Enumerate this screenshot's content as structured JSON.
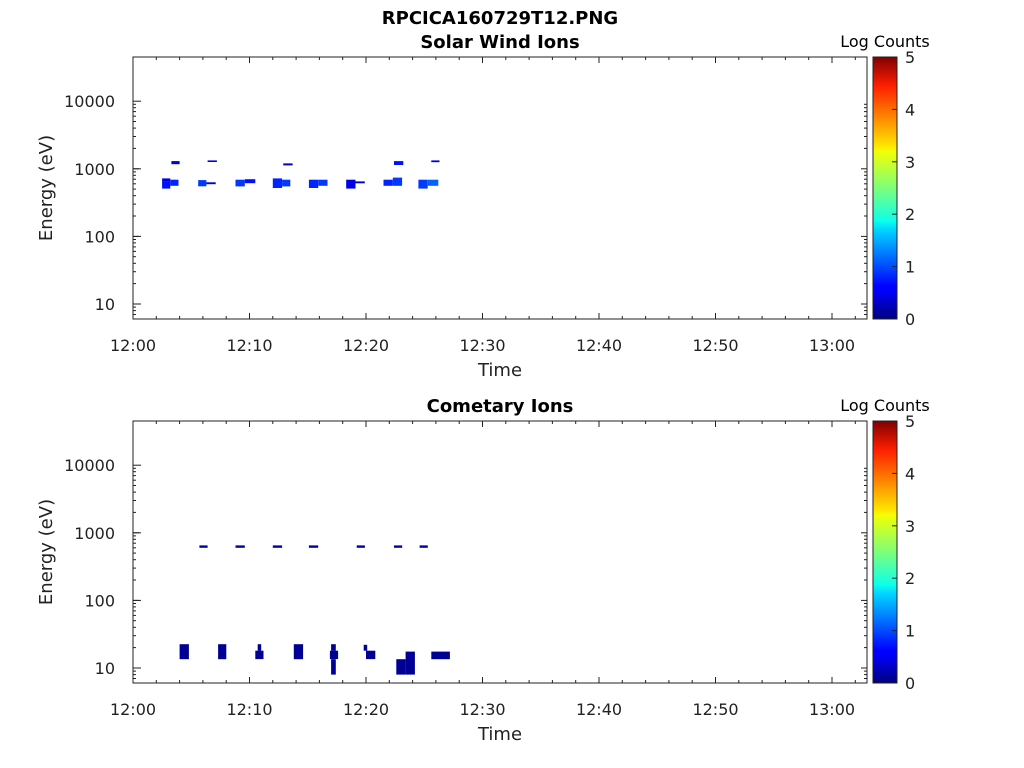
{
  "figure_title": "RPCICA160729T12.PNG",
  "chart_data": [
    {
      "type": "heatmap",
      "title": "Solar Wind Ions",
      "xlabel": "Time",
      "ylabel": "Energy (eV)",
      "x_axis": {
        "ticks": [
          "12:00",
          "12:10",
          "12:20",
          "12:30",
          "12:40",
          "12:50",
          "13:00"
        ],
        "range_min": [
          0,
          63
        ]
      },
      "y_axis": {
        "scale": "log",
        "ticks": [
          "10",
          "100",
          "1000",
          "10000"
        ],
        "range": [
          6,
          45000
        ]
      },
      "colorbar": {
        "label": "Log Counts",
        "ticks": [
          "0",
          "1",
          "2",
          "3",
          "4",
          "5"
        ],
        "range": [
          0,
          5
        ],
        "colormap": "jet"
      },
      "cells": [
        {
          "t0": 2.5,
          "t1": 3.2,
          "e0": 640,
          "e1": 720,
          "v": 0.5
        },
        {
          "t0": 2.5,
          "t1": 3.2,
          "e0": 510,
          "e1": 640,
          "v": 0.7
        },
        {
          "t0": 3.2,
          "t1": 3.9,
          "e0": 560,
          "e1": 690,
          "v": 0.8
        },
        {
          "t0": 3.3,
          "t1": 4.0,
          "e0": 1170,
          "e1": 1300,
          "v": 0.4
        },
        {
          "t0": 5.6,
          "t1": 6.3,
          "e0": 550,
          "e1": 680,
          "v": 0.9
        },
        {
          "t0": 6.3,
          "t1": 7.1,
          "e0": 590,
          "e1": 630,
          "v": 0.4
        },
        {
          "t0": 6.4,
          "t1": 7.2,
          "e0": 1260,
          "e1": 1330,
          "v": 0.5
        },
        {
          "t0": 8.8,
          "t1": 9.6,
          "e0": 550,
          "e1": 690,
          "v": 0.9
        },
        {
          "t0": 9.6,
          "t1": 10.5,
          "e0": 610,
          "e1": 700,
          "v": 0.7
        },
        {
          "t0": 12.0,
          "t1": 12.8,
          "e0": 520,
          "e1": 720,
          "v": 0.8
        },
        {
          "t0": 12.8,
          "t1": 13.5,
          "e0": 550,
          "e1": 690,
          "v": 0.9
        },
        {
          "t0": 12.9,
          "t1": 13.7,
          "e0": 1120,
          "e1": 1200,
          "v": 0.3
        },
        {
          "t0": 15.1,
          "t1": 15.9,
          "e0": 520,
          "e1": 690,
          "v": 0.8
        },
        {
          "t0": 15.9,
          "t1": 16.7,
          "e0": 560,
          "e1": 690,
          "v": 0.9
        },
        {
          "t0": 18.3,
          "t1": 19.1,
          "e0": 510,
          "e1": 690,
          "v": 0.5
        },
        {
          "t0": 19.1,
          "t1": 19.9,
          "e0": 610,
          "e1": 650,
          "v": 0.4
        },
        {
          "t0": 21.5,
          "t1": 22.3,
          "e0": 560,
          "e1": 690,
          "v": 0.8
        },
        {
          "t0": 22.3,
          "t1": 23.1,
          "e0": 560,
          "e1": 740,
          "v": 0.9
        },
        {
          "t0": 22.4,
          "t1": 23.2,
          "e0": 1140,
          "e1": 1300,
          "v": 0.7
        },
        {
          "t0": 24.5,
          "t1": 25.3,
          "e0": 510,
          "e1": 690,
          "v": 0.9
        },
        {
          "t0": 25.3,
          "t1": 26.2,
          "e0": 560,
          "e1": 690,
          "v": 1.1
        },
        {
          "t0": 25.6,
          "t1": 26.3,
          "e0": 1250,
          "e1": 1330,
          "v": 0.4
        }
      ]
    },
    {
      "type": "heatmap",
      "title": "Cometary Ions",
      "xlabel": "Time",
      "ylabel": "Energy (eV)",
      "x_axis": {
        "ticks": [
          "12:00",
          "12:10",
          "12:20",
          "12:30",
          "12:40",
          "12:50",
          "13:00"
        ],
        "range_min": [
          0,
          63
        ]
      },
      "y_axis": {
        "scale": "log",
        "ticks": [
          "10",
          "100",
          "1000",
          "10000"
        ],
        "range": [
          6,
          45000
        ]
      },
      "colorbar": {
        "label": "Log Counts",
        "ticks": [
          "0",
          "1",
          "2",
          "3",
          "4",
          "5"
        ],
        "range": [
          0,
          5
        ],
        "colormap": "jet"
      },
      "cells": [
        {
          "t0": 5.7,
          "t1": 6.4,
          "e0": 600,
          "e1": 650,
          "v": 0.2
        },
        {
          "t0": 8.8,
          "t1": 9.6,
          "e0": 600,
          "e1": 650,
          "v": 0.2
        },
        {
          "t0": 12.0,
          "t1": 12.8,
          "e0": 600,
          "e1": 650,
          "v": 0.2
        },
        {
          "t0": 15.1,
          "t1": 15.9,
          "e0": 600,
          "e1": 650,
          "v": 0.2
        },
        {
          "t0": 19.2,
          "t1": 19.9,
          "e0": 600,
          "e1": 650,
          "v": 0.2
        },
        {
          "t0": 22.4,
          "t1": 23.1,
          "e0": 600,
          "e1": 650,
          "v": 0.2
        },
        {
          "t0": 24.6,
          "t1": 25.3,
          "e0": 600,
          "e1": 650,
          "v": 0.2
        },
        {
          "t0": 4.0,
          "t1": 4.8,
          "e0": 13.5,
          "e1": 22.5,
          "v": 0.1
        },
        {
          "t0": 7.3,
          "t1": 8.0,
          "e0": 13.5,
          "e1": 22.5,
          "v": 0.1
        },
        {
          "t0": 10.5,
          "t1": 11.2,
          "e0": 13.5,
          "e1": 18.0,
          "v": 0.1
        },
        {
          "t0": 10.7,
          "t1": 11.0,
          "e0": 18.0,
          "e1": 22.5,
          "v": 0.1
        },
        {
          "t0": 13.8,
          "t1": 14.6,
          "e0": 13.5,
          "e1": 22.5,
          "v": 0.1
        },
        {
          "t0": 16.9,
          "t1": 17.6,
          "e0": 13.5,
          "e1": 18.0,
          "v": 0.1
        },
        {
          "t0": 17.0,
          "t1": 17.4,
          "e0": 18.0,
          "e1": 22.5,
          "v": 0.1
        },
        {
          "t0": 17.0,
          "t1": 17.4,
          "e0": 8.0,
          "e1": 13.5,
          "v": 0.1
        },
        {
          "t0": 19.8,
          "t1": 20.1,
          "e0": 18.0,
          "e1": 22.0,
          "v": 0.1
        },
        {
          "t0": 20.0,
          "t1": 20.8,
          "e0": 13.5,
          "e1": 18.0,
          "v": 0.1
        },
        {
          "t0": 22.6,
          "t1": 23.4,
          "e0": 8.0,
          "e1": 13.5,
          "v": 0.1
        },
        {
          "t0": 23.4,
          "t1": 24.2,
          "e0": 8.0,
          "e1": 17.5,
          "v": 0.1
        },
        {
          "t0": 25.6,
          "t1": 27.2,
          "e0": 13.5,
          "e1": 17.5,
          "v": 0.1
        }
      ]
    }
  ]
}
